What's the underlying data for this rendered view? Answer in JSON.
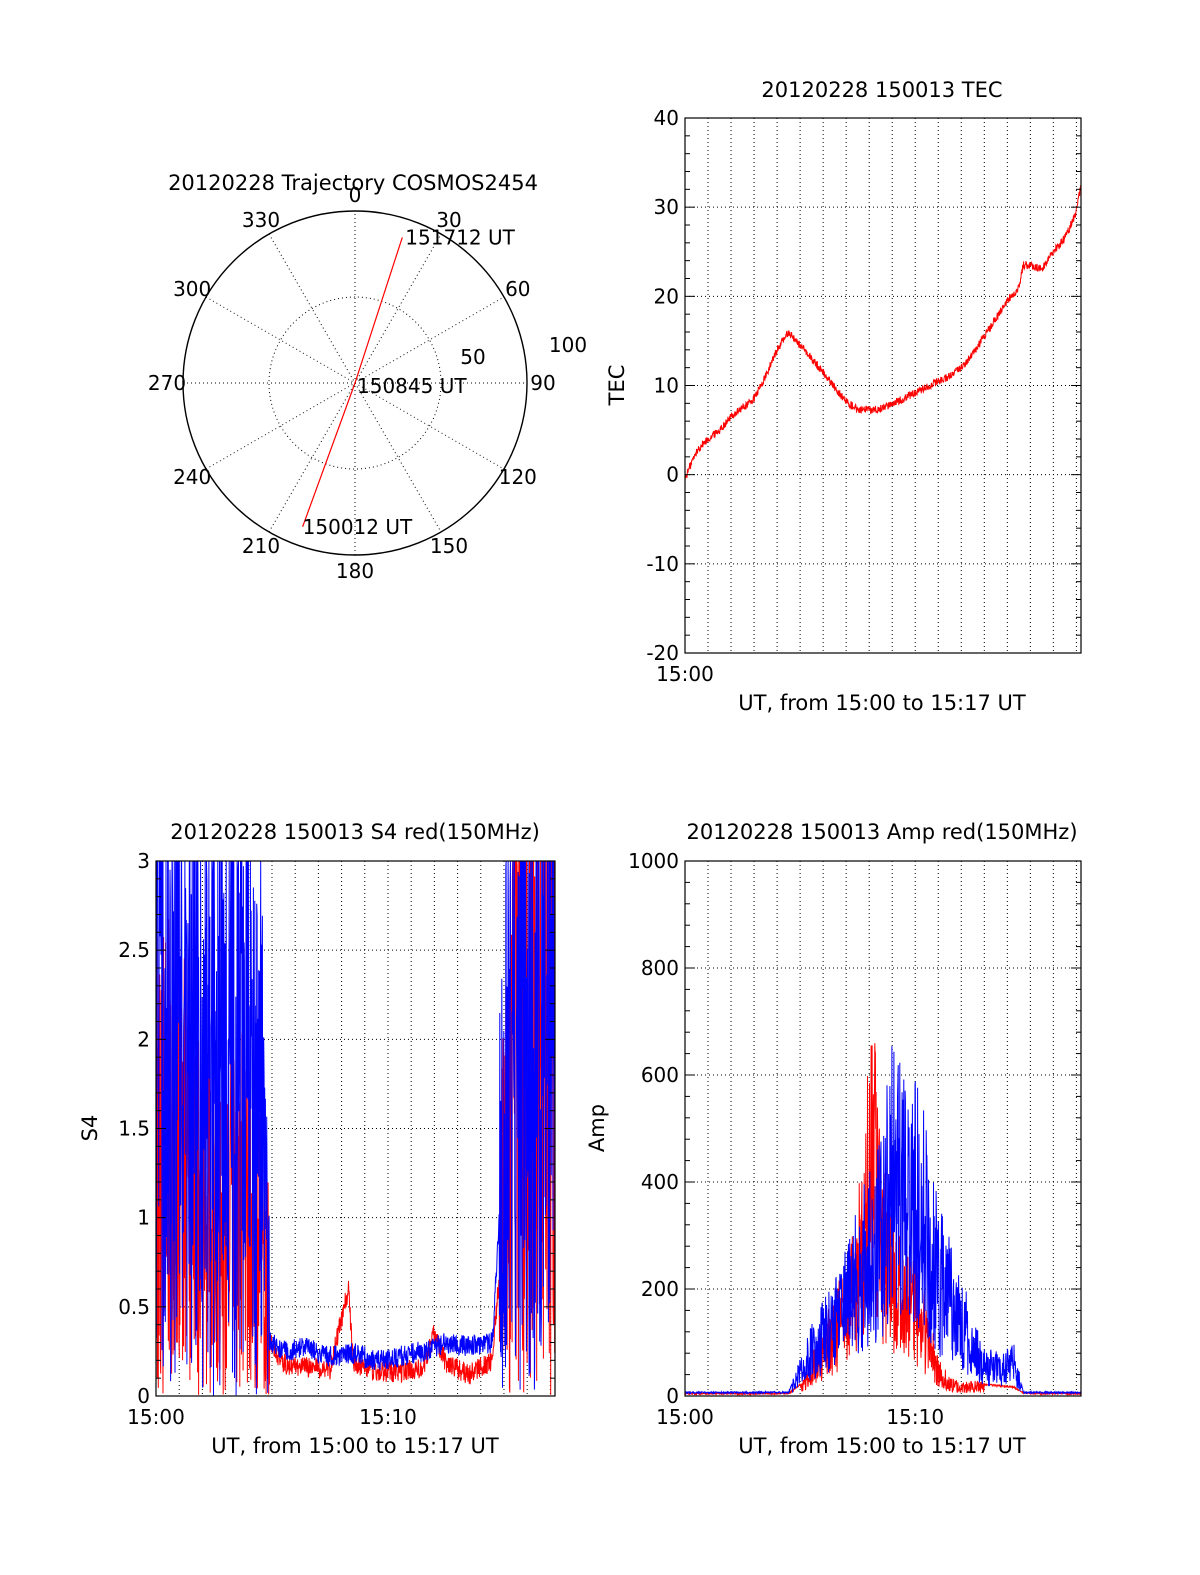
{
  "chart_data": [
    {
      "id": "trajectory",
      "type": "polar",
      "title": "20120228 Trajectory COSMOS2454",
      "azimuth_labels": [
        "0",
        "30",
        "60",
        "90",
        "120",
        "150",
        "180",
        "210",
        "240",
        "270",
        "300",
        "330"
      ],
      "radial_labels": [
        "50",
        "100"
      ],
      "rlim": [
        0,
        100
      ],
      "track": {
        "color": "#ff0000",
        "start": {
          "azimuth": 200,
          "zenith": 89,
          "label": "150012 UT"
        },
        "middle": {
          "azimuth": 0,
          "zenith": 0,
          "label": "150845 UT"
        },
        "end": {
          "azimuth": 18,
          "zenith": 89,
          "label": "151712 UT"
        }
      }
    },
    {
      "id": "tec",
      "type": "line",
      "title": "20120228 150013 TEC",
      "xlabel": "UT, from 15:00 to 15:17 UT",
      "ylabel": "TEC",
      "xlim": [
        0,
        17.2
      ],
      "ylim": [
        -20,
        40
      ],
      "yticks": [
        "-20",
        "-10",
        "0",
        "10",
        "20",
        "30",
        "40"
      ],
      "xticks": [
        {
          "value": 0,
          "label": "15:00"
        }
      ],
      "grid": true,
      "series": [
        {
          "color": "#ff0000",
          "x": [
            0.0,
            0.3,
            0.6,
            1.0,
            1.5,
            2.0,
            2.5,
            3.0,
            3.5,
            4.0,
            4.5,
            5.0,
            5.5,
            6.0,
            6.5,
            7.0,
            7.5,
            8.0,
            8.5,
            9.0,
            10.0,
            11.0,
            11.5,
            12.0,
            12.5,
            13.0,
            13.5,
            14.0,
            14.5,
            14.7,
            15.0,
            15.5,
            16.0,
            16.5,
            17.0,
            17.2
          ],
          "y": [
            -0.5,
            1.5,
            3.0,
            4.0,
            5.0,
            6.5,
            7.5,
            8.5,
            11.0,
            14.0,
            16.0,
            14.5,
            13.0,
            11.5,
            9.8,
            8.2,
            7.3,
            7.2,
            7.4,
            8.0,
            9.2,
            10.5,
            11.0,
            12.0,
            13.5,
            15.5,
            17.5,
            19.5,
            21.0,
            23.5,
            23.5,
            23.0,
            25.0,
            26.5,
            29.5,
            32.5
          ]
        }
      ]
    },
    {
      "id": "s4",
      "type": "line",
      "title": "20120228 150013 S4 red(150MHz)",
      "xlabel": "UT, from 15:00 to 15:17 UT",
      "ylabel": "S4",
      "xlim": [
        0,
        17.2
      ],
      "ylim": [
        0,
        3
      ],
      "yticks": [
        "0",
        "0.5",
        "1",
        "1.5",
        "2",
        "2.5",
        "3"
      ],
      "xticks": [
        {
          "value": 0,
          "label": "15:00"
        },
        {
          "value": 10,
          "label": "15:10"
        }
      ],
      "grid": true,
      "series": [
        {
          "color": "#ff0000",
          "x": [
            0.5,
            1.5,
            2.5,
            3.5,
            4.5,
            4.9,
            5.5,
            6.5,
            7.5,
            8.3,
            8.5,
            9.5,
            10.5,
            11.5,
            12.0,
            12.5,
            13.5,
            14.5,
            15.0,
            15.5,
            16.5,
            17.0
          ],
          "y": [
            1.5,
            1.2,
            0.9,
            1.1,
            0.8,
            0.3,
            0.18,
            0.16,
            0.15,
            0.6,
            0.18,
            0.14,
            0.13,
            0.16,
            0.35,
            0.18,
            0.12,
            0.2,
            1.0,
            2.5,
            2.0,
            2.8
          ]
        },
        {
          "color": "#0000ff",
          "x": [
            0.5,
            1.5,
            2.5,
            3.5,
            4.5,
            4.9,
            5.5,
            6.5,
            7.5,
            8.5,
            9.5,
            10.5,
            11.5,
            12.5,
            13.5,
            14.5,
            15.0,
            15.5,
            16.5,
            17.0
          ],
          "y": [
            2.4,
            2.2,
            2.0,
            2.3,
            1.8,
            0.3,
            0.25,
            0.27,
            0.22,
            0.24,
            0.2,
            0.22,
            0.25,
            0.3,
            0.28,
            0.3,
            1.5,
            2.7,
            2.8,
            2.9
          ]
        }
      ]
    },
    {
      "id": "amp",
      "type": "line",
      "title": "20120228 150013 Amp red(150MHz)",
      "xlabel": "UT, from 15:00 to 15:17 UT",
      "ylabel": "Amp",
      "xlim": [
        0,
        17.2
      ],
      "ylim": [
        0,
        1000
      ],
      "yticks": [
        "0",
        "200",
        "400",
        "600",
        "800",
        "1000"
      ],
      "xticks": [
        {
          "value": 0,
          "label": "15:00"
        },
        {
          "value": 10,
          "label": "15:10"
        }
      ],
      "grid": true,
      "series": [
        {
          "color": "#ff0000",
          "x": [
            0,
            4.5,
            5.0,
            5.5,
            6.0,
            6.5,
            7.0,
            7.5,
            8.0,
            8.2,
            8.5,
            9.0,
            9.5,
            10.0,
            10.5,
            11.0,
            11.5,
            12.0,
            12.5,
            13.0,
            14.3,
            14.7,
            15.5,
            17.2
          ],
          "y": [
            3,
            3,
            20,
            60,
            120,
            160,
            220,
            300,
            550,
            760,
            400,
            280,
            250,
            220,
            150,
            60,
            30,
            20,
            25,
            20,
            15,
            4,
            3,
            3
          ]
        },
        {
          "color": "#0000ff",
          "x": [
            0,
            4.5,
            5.0,
            5.5,
            6.0,
            6.5,
            7.0,
            7.5,
            8.0,
            8.5,
            9.0,
            9.5,
            10.0,
            10.5,
            11.0,
            11.5,
            12.0,
            12.5,
            13.0,
            13.5,
            14.3,
            14.7,
            15.5,
            17.2
          ],
          "y": [
            5,
            5,
            60,
            120,
            150,
            180,
            230,
            300,
            360,
            400,
            560,
            520,
            500,
            440,
            300,
            250,
            200,
            120,
            80,
            70,
            80,
            5,
            5,
            5
          ]
        }
      ]
    }
  ]
}
